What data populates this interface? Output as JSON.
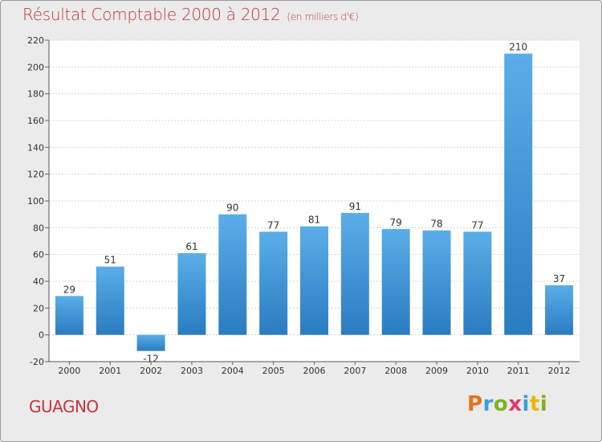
{
  "header": {
    "title": "Résultat Comptable 2000 à 2012",
    "subtitle": "(en milliers d'€)"
  },
  "footer": {
    "commune": "GUAGNO",
    "logo_letters": [
      "P",
      "r",
      "o",
      "x",
      "i",
      "t",
      "i"
    ],
    "logo_colors": [
      "#e8711c",
      "#3aa0d8",
      "#7ab51d",
      "#e23a6f",
      "#3aa0d8",
      "#f0b400",
      "#7ab51d"
    ]
  },
  "colors": {
    "bar_light": "#5aaee8",
    "bar_dark": "#2a7cc0",
    "grid": "#d4d4d4",
    "title": "#c8343a"
  },
  "chart_data": {
    "type": "bar",
    "title": "Résultat Comptable 2000 à 2012",
    "subtitle": "(en milliers d'€)",
    "categories": [
      "2000",
      "2001",
      "2002",
      "2003",
      "2004",
      "2005",
      "2006",
      "2007",
      "2008",
      "2009",
      "2010",
      "2011",
      "2012"
    ],
    "values": [
      29,
      51,
      -12,
      61,
      90,
      77,
      81,
      91,
      79,
      78,
      77,
      210,
      37
    ],
    "ylim": [
      -20,
      220
    ],
    "yticks": [
      -20,
      0,
      20,
      40,
      60,
      80,
      100,
      120,
      140,
      160,
      180,
      200,
      220
    ],
    "grid": true,
    "xlabel": "",
    "ylabel": ""
  }
}
